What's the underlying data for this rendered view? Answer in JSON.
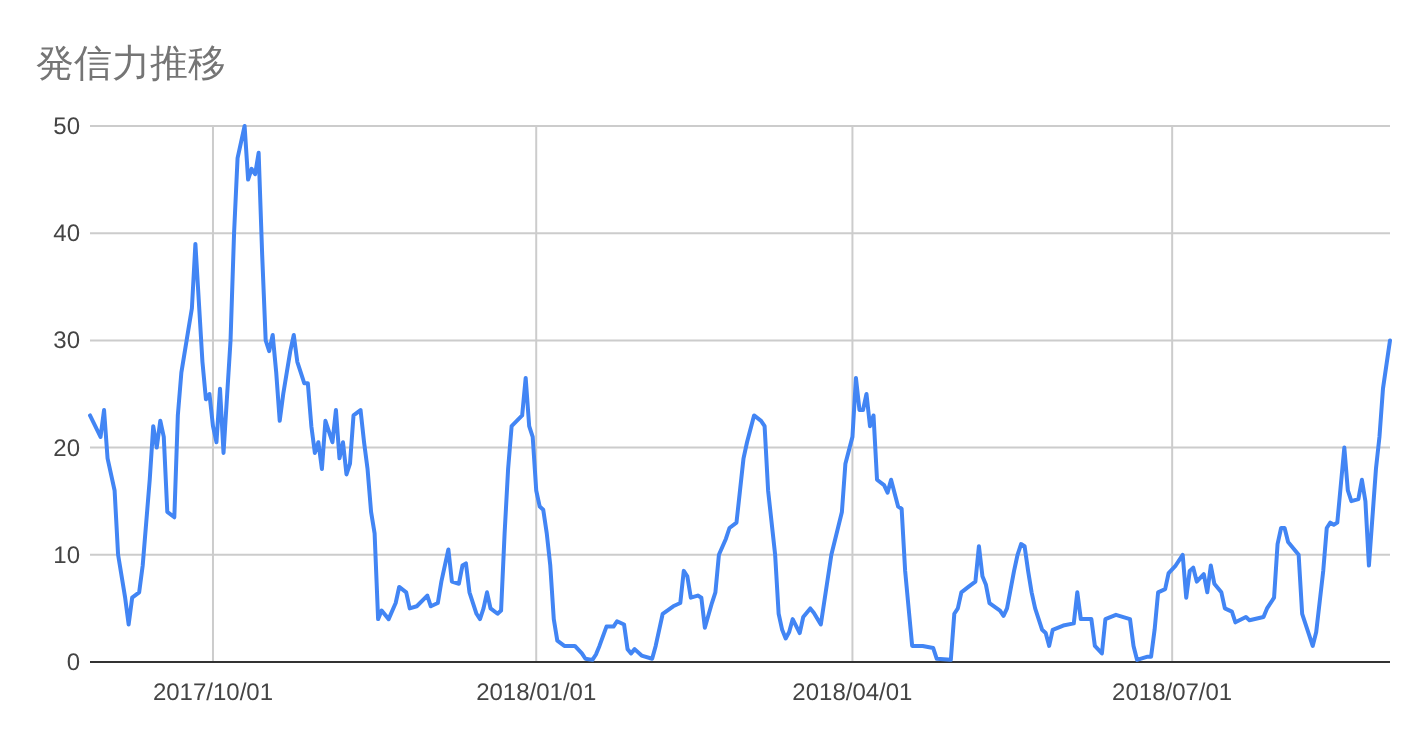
{
  "chart_data": {
    "type": "line",
    "title": "発信力推移",
    "color": "#4285f4",
    "grid": true,
    "xlim": [
      "2017-08-27",
      "2018-09-01"
    ],
    "ylim": [
      0,
      50
    ],
    "yticks": [
      0,
      10,
      20,
      30,
      40,
      50
    ],
    "xticks": [
      {
        "value": "2017-10-01",
        "label": "2017/10/01"
      },
      {
        "value": "2018-01-01",
        "label": "2018/01/01"
      },
      {
        "value": "2018-04-01",
        "label": "2018/04/01"
      },
      {
        "value": "2018-07-01",
        "label": "2018/07/01"
      }
    ],
    "x": [
      "2017-08-27",
      "2017-08-30",
      "2017-08-31",
      "2017-09-01",
      "2017-09-03",
      "2017-09-04",
      "2017-09-06",
      "2017-09-07",
      "2017-09-08",
      "2017-09-10",
      "2017-09-11",
      "2017-09-13",
      "2017-09-14",
      "2017-09-15",
      "2017-09-16",
      "2017-09-17",
      "2017-09-18",
      "2017-09-20",
      "2017-09-21",
      "2017-09-22",
      "2017-09-24",
      "2017-09-25",
      "2017-09-26",
      "2017-09-28",
      "2017-09-29",
      "2017-09-30",
      "2017-10-01",
      "2017-10-02",
      "2017-10-03",
      "2017-10-04",
      "2017-10-06",
      "2017-10-07",
      "2017-10-08",
      "2017-10-10",
      "2017-10-11",
      "2017-10-12",
      "2017-10-13",
      "2017-10-14",
      "2017-10-15",
      "2017-10-16",
      "2017-10-17",
      "2017-10-18",
      "2017-10-19",
      "2017-10-20",
      "2017-10-21",
      "2017-10-23",
      "2017-10-24",
      "2017-10-25",
      "2017-10-27",
      "2017-10-28",
      "2017-10-29",
      "2017-10-30",
      "2017-10-31",
      "2017-11-01",
      "2017-11-02",
      "2017-11-04",
      "2017-11-05",
      "2017-11-06",
      "2017-11-07",
      "2017-11-08",
      "2017-11-09",
      "2017-11-10",
      "2017-11-12",
      "2017-11-13",
      "2017-11-14",
      "2017-11-15",
      "2017-11-16",
      "2017-11-17",
      "2017-11-18",
      "2017-11-20",
      "2017-11-22",
      "2017-11-23",
      "2017-11-25",
      "2017-11-26",
      "2017-11-28",
      "2017-12-01",
      "2017-12-02",
      "2017-12-04",
      "2017-12-05",
      "2017-12-07",
      "2017-12-08",
      "2017-12-10",
      "2017-12-11",
      "2017-12-12",
      "2017-12-13",
      "2017-12-15",
      "2017-12-16",
      "2017-12-17",
      "2017-12-18",
      "2017-12-19",
      "2017-12-21",
      "2017-12-22",
      "2017-12-23",
      "2017-12-24",
      "2017-12-25",
      "2017-12-28",
      "2017-12-29",
      "2017-12-30",
      "2017-12-31",
      "2018-01-01",
      "2018-01-02",
      "2018-01-03",
      "2018-01-04",
      "2018-01-05",
      "2018-01-06",
      "2018-01-07",
      "2018-01-09",
      "2018-01-12",
      "2018-01-14",
      "2018-01-15",
      "2018-01-17",
      "2018-01-18",
      "2018-01-19",
      "2018-01-21",
      "2018-01-23",
      "2018-01-24",
      "2018-01-26",
      "2018-01-27",
      "2018-01-28",
      "2018-01-29",
      "2018-01-31",
      "2018-02-03",
      "2018-02-04",
      "2018-02-06",
      "2018-02-09",
      "2018-02-11",
      "2018-02-12",
      "2018-02-13",
      "2018-02-14",
      "2018-02-16",
      "2018-02-17",
      "2018-02-18",
      "2018-02-20",
      "2018-02-21",
      "2018-02-22",
      "2018-02-24",
      "2018-02-25",
      "2018-02-27",
      "2018-02-28",
      "2018-03-01",
      "2018-03-02",
      "2018-03-04",
      "2018-03-06",
      "2018-03-07",
      "2018-03-08",
      "2018-03-10",
      "2018-03-11",
      "2018-03-12",
      "2018-03-13",
      "2018-03-14",
      "2018-03-15",
      "2018-03-17",
      "2018-03-18",
      "2018-03-20",
      "2018-03-21",
      "2018-03-23",
      "2018-03-26",
      "2018-03-29",
      "2018-03-30",
      "2018-04-01",
      "2018-04-02",
      "2018-04-03",
      "2018-04-04",
      "2018-04-05",
      "2018-04-06",
      "2018-04-07",
      "2018-04-08",
      "2018-04-10",
      "2018-04-11",
      "2018-04-12",
      "2018-04-14",
      "2018-04-15",
      "2018-04-16",
      "2018-04-17",
      "2018-04-18",
      "2018-04-21",
      "2018-04-24",
      "2018-04-25",
      "2018-04-29",
      "2018-04-30",
      "2018-05-01",
      "2018-05-02",
      "2018-05-04",
      "2018-05-06",
      "2018-05-07",
      "2018-05-08",
      "2018-05-09",
      "2018-05-10",
      "2018-05-13",
      "2018-05-14",
      "2018-05-15",
      "2018-05-17",
      "2018-05-18",
      "2018-05-19",
      "2018-05-20",
      "2018-05-21",
      "2018-05-22",
      "2018-05-23",
      "2018-05-25",
      "2018-05-26",
      "2018-05-27",
      "2018-05-28",
      "2018-05-31",
      "2018-06-03",
      "2018-06-04",
      "2018-06-05",
      "2018-06-08",
      "2018-06-09",
      "2018-06-11",
      "2018-06-12",
      "2018-06-15",
      "2018-06-19",
      "2018-06-20",
      "2018-06-21",
      "2018-06-24",
      "2018-06-25",
      "2018-06-26",
      "2018-06-27",
      "2018-06-29",
      "2018-06-30",
      "2018-07-02",
      "2018-07-04",
      "2018-07-05",
      "2018-07-06",
      "2018-07-07",
      "2018-07-08",
      "2018-07-10",
      "2018-07-11",
      "2018-07-12",
      "2018-07-13",
      "2018-07-15",
      "2018-07-16",
      "2018-07-18",
      "2018-07-19",
      "2018-07-22",
      "2018-07-23",
      "2018-07-27",
      "2018-07-28",
      "2018-07-30",
      "2018-07-31",
      "2018-08-01",
      "2018-08-02",
      "2018-08-03",
      "2018-08-06",
      "2018-08-07",
      "2018-08-09",
      "2018-08-10",
      "2018-08-11",
      "2018-08-13",
      "2018-08-14",
      "2018-08-15",
      "2018-08-16",
      "2018-08-17",
      "2018-08-19",
      "2018-08-20",
      "2018-08-21",
      "2018-08-23",
      "2018-08-24",
      "2018-08-25",
      "2018-08-26",
      "2018-08-28",
      "2018-08-29",
      "2018-08-30",
      "2018-09-01"
    ],
    "values": [
      23,
      21,
      23.5,
      19,
      16,
      10,
      6,
      3.5,
      6,
      6.5,
      9,
      17,
      22,
      20,
      22.5,
      21,
      14,
      13.5,
      23,
      27,
      31,
      33,
      39,
      28,
      24.5,
      25,
      22,
      20.5,
      25.5,
      19.5,
      30,
      40,
      47,
      50,
      45,
      46,
      45.5,
      47.5,
      38,
      30,
      29,
      30.5,
      27,
      22.5,
      25,
      29,
      30.5,
      28,
      26,
      26,
      22,
      19.5,
      20.5,
      18,
      22.5,
      20.5,
      23.5,
      19,
      20.5,
      17.5,
      18.5,
      23,
      23.5,
      20.5,
      18,
      14,
      12,
      4,
      4.8,
      4,
      5.5,
      7,
      6.5,
      5,
      5.2,
      6.2,
      5.2,
      5.5,
      7.5,
      10.5,
      7.5,
      7.3,
      9,
      9.2,
      6.5,
      4.5,
      4,
      5,
      6.5,
      5,
      4.5,
      4.8,
      12,
      18,
      22,
      23,
      26.5,
      22,
      21,
      16,
      14.5,
      14.2,
      12,
      9,
      4,
      2,
      1.5,
      1.5,
      0.8,
      0.3,
      0.2,
      0.7,
      1.5,
      3.3,
      3.3,
      3.8,
      3.5,
      1.2,
      0.8,
      1.2,
      0.6,
      0.3,
      1.5,
      4.5,
      5.2,
      5.5,
      8.5,
      8,
      6,
      6.2,
      6,
      3.2,
      5.5,
      6.5,
      10,
      11.5,
      12.5,
      13,
      16,
      19,
      20.5,
      23,
      22.5,
      22,
      16,
      10,
      4.5,
      3,
      2.2,
      2.8,
      4,
      2.7,
      4.2,
      5,
      4.6,
      3.5,
      10,
      14,
      18.5,
      21,
      26.5,
      23.5,
      23.5,
      25,
      22,
      23,
      17,
      16.5,
      15.8,
      17,
      14.5,
      14.3,
      8.5,
      5,
      1.5,
      1.5,
      1.3,
      0.3,
      0.2,
      4.5,
      5,
      6.5,
      7,
      7.5,
      10.8,
      8,
      7.2,
      5.5,
      4.8,
      4.3,
      5,
      8.5,
      10,
      11,
      10.8,
      8.5,
      6.5,
      5,
      3,
      2.7,
      1.5,
      3,
      3.4,
      3.6,
      6.5,
      4,
      4,
      1.5,
      0.8,
      4,
      4.4,
      4,
      1.5,
      0.2,
      0.5,
      0.5,
      3,
      6.5,
      6.8,
      8.3,
      9,
      10,
      6,
      8.5,
      8.8,
      7.5,
      8.2,
      6.5,
      9,
      7.3,
      6.5,
      5,
      4.7,
      3.7,
      4.2,
      3.9,
      4.2,
      5,
      6,
      11,
      12.5,
      12.5,
      11.2,
      10,
      4.5,
      2.5,
      1.5,
      2.8,
      8.5,
      12.5,
      13,
      12.8,
      13,
      20,
      16,
      15,
      15.2,
      17,
      15,
      9,
      18,
      21,
      25.5,
      30
    ]
  }
}
